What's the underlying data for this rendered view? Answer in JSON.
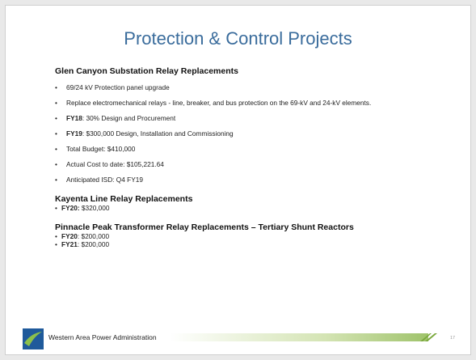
{
  "title": "Protection & Control Projects",
  "sections": [
    {
      "heading": "Glen Canyon Substation Relay Replacements",
      "items": [
        {
          "text": "69/24 kV Protection panel upgrade"
        },
        {
          "text": "Replace electromechanical relays - line, breaker, and bus protection on the 69-kV and 24-kV elements."
        },
        {
          "lead": "FY18",
          "text": ": 30% Design and Procurement"
        },
        {
          "lead": "FY19",
          "text": ": $300,000  Design, Installation and Commissioning"
        },
        {
          "text": "Total Budget: $410,000"
        },
        {
          "text": "Actual Cost to date:  $105,221.64"
        },
        {
          "text": "Anticipated ISD: Q4 FY19"
        }
      ]
    },
    {
      "heading": "Kayenta Line Relay Replacements",
      "items": [
        {
          "lead": "FY20:",
          "text": " $320,000"
        }
      ]
    },
    {
      "heading": "Pinnacle Peak Transformer Relay Replacements – Tertiary Shunt Reactors",
      "items": [
        {
          "lead": "FY20",
          "text": ": $200,000"
        },
        {
          "lead": "FY21",
          "text": ": $200,000"
        }
      ]
    }
  ],
  "footer": {
    "org": "Western Area Power Administration",
    "page": "17"
  }
}
